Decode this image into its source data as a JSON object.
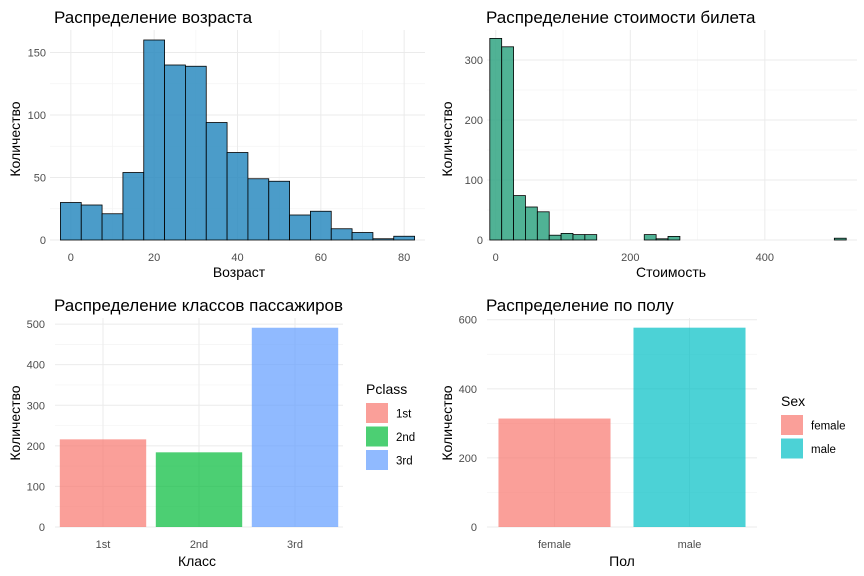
{
  "chart_data": [
    {
      "type": "bar",
      "subtype": "histogram",
      "title": "Распределение возраста",
      "xlabel": "Возраст",
      "ylabel": "Количество",
      "bin_width": 5,
      "bin_centers": [
        0,
        5,
        10,
        15,
        20,
        25,
        30,
        35,
        40,
        45,
        50,
        55,
        60,
        65,
        70,
        75,
        80
      ],
      "values": [
        30,
        28,
        21,
        54,
        160,
        140,
        139,
        94,
        70,
        49,
        47,
        20,
        23,
        9,
        6,
        1,
        3
      ],
      "xlim": [
        -5,
        85
      ],
      "ylim": [
        0,
        168
      ],
      "x_ticks": [
        "0",
        "20",
        "40",
        "60",
        "80"
      ],
      "y_ticks": [
        "0",
        "50",
        "100",
        "150"
      ],
      "fill_color": "#2c8bc0",
      "edge_color": "#000000",
      "grid": true
    },
    {
      "type": "bar",
      "subtype": "histogram",
      "title": "Распределение стоимости билета",
      "xlabel": "Стоимость",
      "ylabel": "Количество",
      "bin_width": 17.66,
      "bin_centers": [
        0,
        17.66,
        35.32,
        52.98,
        70.64,
        88.3,
        105.96,
        123.62,
        141.28,
        158.94,
        176.6,
        194.26,
        211.92,
        229.58,
        247.24,
        264.9,
        282.56,
        300.22,
        317.88,
        335.54,
        353.2,
        370.86,
        388.52,
        406.18,
        423.84,
        441.5,
        459.16,
        476.82,
        494.48,
        512.14
      ],
      "values": [
        336,
        322,
        74,
        55,
        47,
        8,
        11,
        9,
        9,
        0,
        0,
        0,
        0,
        9,
        2,
        6,
        0,
        0,
        0,
        0,
        0,
        0,
        0,
        0,
        0,
        0,
        0,
        0,
        0,
        3
      ],
      "xlim": [
        -13,
        537
      ],
      "ylim": [
        0,
        350
      ],
      "x_ticks": [
        "0",
        "200",
        "400"
      ],
      "y_ticks": [
        "0",
        "100",
        "200",
        "300"
      ],
      "fill_color": "#31a482",
      "edge_color": "#000000",
      "grid": true
    },
    {
      "type": "bar",
      "title": "Распределение классов пассажиров",
      "xlabel": "Класс",
      "ylabel": "Количество",
      "categories": [
        "1st",
        "2nd",
        "3rd"
      ],
      "values": [
        216,
        184,
        491
      ],
      "colors": [
        "#f8766d",
        "#00ba38",
        "#619cff"
      ],
      "ylim": [
        0,
        515
      ],
      "y_ticks": [
        "0",
        "100",
        "200",
        "300",
        "400",
        "500"
      ],
      "legend": {
        "title": "Pclass",
        "labels": [
          "1st",
          "2nd",
          "3rd"
        ],
        "position": "right"
      },
      "grid": true
    },
    {
      "type": "bar",
      "title": "Распределение по полу",
      "xlabel": "Пол",
      "ylabel": "Количество",
      "categories": [
        "female",
        "male"
      ],
      "values": [
        314,
        577
      ],
      "colors": [
        "#f8766d",
        "#00bfc4"
      ],
      "ylim": [
        0,
        605
      ],
      "y_ticks": [
        "0",
        "200",
        "400",
        "600"
      ],
      "legend": {
        "title": "Sex",
        "labels": [
          "female",
          "male"
        ],
        "position": "right"
      },
      "grid": true
    }
  ]
}
